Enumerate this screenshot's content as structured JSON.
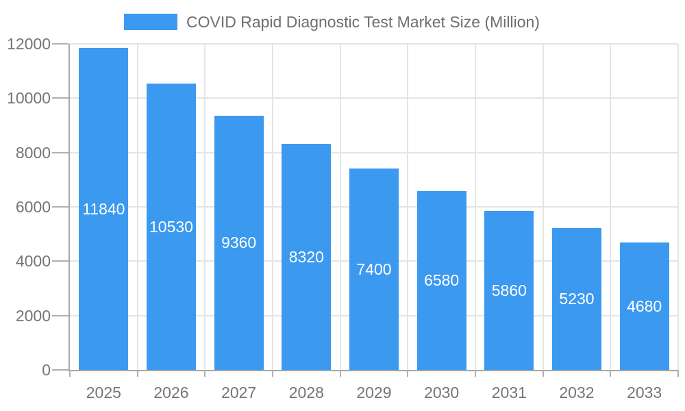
{
  "chart_data": {
    "type": "bar",
    "title": "COVID Rapid Diagnostic Test Market Size (Million)",
    "legend": [
      {
        "label": "COVID Rapid Diagnostic Test Market Size (Million)"
      }
    ],
    "legend_position": "top",
    "categories": [
      "2025",
      "2026",
      "2027",
      "2028",
      "2029",
      "2030",
      "2031",
      "2032",
      "2033"
    ],
    "values": [
      11840,
      10530,
      9360,
      8320,
      7400,
      6580,
      5860,
      5230,
      4680
    ],
    "bar_value_labels": [
      "11840",
      "10530",
      "9360",
      "8320",
      "7400",
      "6580",
      "5860",
      "5230",
      "4680"
    ],
    "xlabel": "",
    "ylabel": "",
    "ylim": [
      0,
      12000
    ],
    "yticks": [
      0,
      2000,
      4000,
      6000,
      8000,
      10000,
      12000
    ],
    "grid": true,
    "colors": {
      "bar": "#3C99F0",
      "bar_label": "#FFFFFF",
      "axis_text": "#757575",
      "legend_text": "#6E6E6E",
      "axis_line": "#A6A6A6",
      "tick_line": "#B0B0B0",
      "grid_line": "#E4E4E4",
      "background": "#FFFFFF"
    }
  }
}
